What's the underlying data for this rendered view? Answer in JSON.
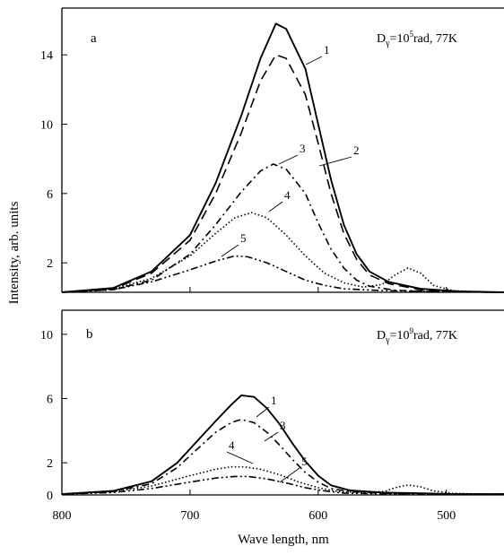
{
  "chart_data": [
    {
      "type": "line",
      "panel_label": "a",
      "condition": {
        "prefix": "D",
        "sub": "γ",
        "mid": "=10",
        "sup": "5",
        "suffix": "rad, 77K"
      },
      "xlabel": "Wave length, nm",
      "ylabel": "Intensity, arb. units",
      "xlim": [
        800,
        455
      ],
      "ylim": [
        0.3,
        16.7
      ],
      "x_reversed": true,
      "xticks": [
        800,
        700,
        600,
        500
      ],
      "yticks": [
        2,
        6,
        10,
        14
      ],
      "series": [
        {
          "name": "1",
          "style": "solid",
          "points": [
            [
              800,
              0.3
            ],
            [
              760,
              0.55
            ],
            [
              730,
              1.5
            ],
            [
              700,
              3.6
            ],
            [
              680,
              6.6
            ],
            [
              660,
              10.5
            ],
            [
              645,
              13.8
            ],
            [
              633,
              15.8
            ],
            [
              625,
              15.5
            ],
            [
              610,
              13.2
            ],
            [
              600,
              10.0
            ],
            [
              590,
              6.8
            ],
            [
              580,
              4.2
            ],
            [
              570,
              2.5
            ],
            [
              560,
              1.5
            ],
            [
              545,
              0.9
            ],
            [
              520,
              0.5
            ],
            [
              490,
              0.35
            ],
            [
              455,
              0.3
            ]
          ]
        },
        {
          "name": "2",
          "style": "dashed",
          "points": [
            [
              800,
              0.3
            ],
            [
              760,
              0.5
            ],
            [
              730,
              1.4
            ],
            [
              700,
              3.3
            ],
            [
              680,
              6.0
            ],
            [
              660,
              9.5
            ],
            [
              645,
              12.5
            ],
            [
              633,
              14.0
            ],
            [
              625,
              13.8
            ],
            [
              610,
              11.7
            ],
            [
              600,
              8.9
            ],
            [
              590,
              6.0
            ],
            [
              580,
              3.7
            ],
            [
              570,
              2.2
            ],
            [
              560,
              1.3
            ],
            [
              545,
              0.8
            ],
            [
              520,
              0.45
            ],
            [
              490,
              0.33
            ],
            [
              455,
              0.3
            ]
          ]
        },
        {
          "name": "3",
          "style": "dashdot",
          "points": [
            [
              800,
              0.3
            ],
            [
              760,
              0.45
            ],
            [
              730,
              1.0
            ],
            [
              700,
              2.5
            ],
            [
              680,
              4.2
            ],
            [
              660,
              6.1
            ],
            [
              645,
              7.3
            ],
            [
              635,
              7.7
            ],
            [
              625,
              7.4
            ],
            [
              610,
              6.0
            ],
            [
              600,
              4.3
            ],
            [
              590,
              2.8
            ],
            [
              580,
              1.7
            ],
            [
              570,
              1.0
            ],
            [
              560,
              0.65
            ],
            [
              540,
              0.42
            ],
            [
              500,
              0.32
            ],
            [
              455,
              0.3
            ]
          ]
        },
        {
          "name": "4",
          "style": "dotted",
          "points": [
            [
              800,
              0.3
            ],
            [
              760,
              0.5
            ],
            [
              730,
              1.1
            ],
            [
              700,
              2.4
            ],
            [
              680,
              3.7
            ],
            [
              665,
              4.6
            ],
            [
              652,
              4.9
            ],
            [
              640,
              4.6
            ],
            [
              625,
              3.6
            ],
            [
              610,
              2.4
            ],
            [
              595,
              1.4
            ],
            [
              580,
              0.85
            ],
            [
              565,
              0.6
            ],
            [
              550,
              0.75
            ],
            [
              540,
              1.3
            ],
            [
              530,
              1.7
            ],
            [
              520,
              1.4
            ],
            [
              510,
              0.7
            ],
            [
              495,
              0.4
            ],
            [
              470,
              0.3
            ],
            [
              455,
              0.3
            ]
          ]
        },
        {
          "name": "5",
          "style": "dashdotdot",
          "points": [
            [
              800,
              0.3
            ],
            [
              760,
              0.45
            ],
            [
              730,
              0.9
            ],
            [
              700,
              1.6
            ],
            [
              680,
              2.1
            ],
            [
              665,
              2.4
            ],
            [
              655,
              2.35
            ],
            [
              640,
              2.0
            ],
            [
              625,
              1.5
            ],
            [
              610,
              1.0
            ],
            [
              595,
              0.7
            ],
            [
              580,
              0.5
            ],
            [
              550,
              0.4
            ],
            [
              500,
              0.33
            ],
            [
              455,
              0.3
            ]
          ]
        }
      ],
      "curve_labels": [
        {
          "series": "1",
          "text": "1"
        },
        {
          "series": "2",
          "text": "2"
        },
        {
          "series": "3",
          "text": "3"
        },
        {
          "series": "4",
          "text": "4"
        },
        {
          "series": "5",
          "text": "5"
        }
      ]
    },
    {
      "type": "line",
      "panel_label": "b",
      "condition": {
        "prefix": "D",
        "sub": "γ",
        "mid": "=10",
        "sup": "9",
        "suffix": "rad, 77K"
      },
      "xlabel": "Wave length, nm",
      "ylabel": "Intensity, arb. units",
      "xlim": [
        800,
        455
      ],
      "ylim": [
        0,
        11.5
      ],
      "x_reversed": true,
      "xticks": [
        800,
        700,
        600,
        500
      ],
      "yticks": [
        0,
        2,
        6,
        10
      ],
      "series": [
        {
          "name": "1",
          "style": "solid",
          "points": [
            [
              800,
              0.05
            ],
            [
              760,
              0.25
            ],
            [
              730,
              0.85
            ],
            [
              710,
              2.0
            ],
            [
              695,
              3.3
            ],
            [
              680,
              4.6
            ],
            [
              668,
              5.6
            ],
            [
              660,
              6.2
            ],
            [
              650,
              6.1
            ],
            [
              640,
              5.4
            ],
            [
              630,
              4.4
            ],
            [
              620,
              3.2
            ],
            [
              610,
              2.1
            ],
            [
              600,
              1.2
            ],
            [
              590,
              0.6
            ],
            [
              575,
              0.28
            ],
            [
              550,
              0.15
            ],
            [
              520,
              0.1
            ],
            [
              490,
              0.05
            ],
            [
              455,
              0.05
            ]
          ]
        },
        {
          "name": "3",
          "style": "dashdot",
          "points": [
            [
              800,
              0.05
            ],
            [
              760,
              0.22
            ],
            [
              730,
              0.7
            ],
            [
              710,
              1.7
            ],
            [
              695,
              2.8
            ],
            [
              680,
              3.9
            ],
            [
              668,
              4.5
            ],
            [
              660,
              4.7
            ],
            [
              650,
              4.5
            ],
            [
              640,
              3.9
            ],
            [
              630,
              3.1
            ],
            [
              620,
              2.2
            ],
            [
              610,
              1.4
            ],
            [
              600,
              0.8
            ],
            [
              590,
              0.4
            ],
            [
              575,
              0.2
            ],
            [
              550,
              0.1
            ],
            [
              500,
              0.05
            ],
            [
              455,
              0.05
            ]
          ]
        },
        {
          "name": "4",
          "style": "dotted",
          "points": [
            [
              800,
              0.05
            ],
            [
              760,
              0.2
            ],
            [
              730,
              0.55
            ],
            [
              700,
              1.2
            ],
            [
              680,
              1.6
            ],
            [
              668,
              1.75
            ],
            [
              658,
              1.75
            ],
            [
              645,
              1.6
            ],
            [
              630,
              1.25
            ],
            [
              615,
              0.8
            ],
            [
              600,
              0.45
            ],
            [
              585,
              0.22
            ],
            [
              565,
              0.15
            ],
            [
              548,
              0.22
            ],
            [
              540,
              0.45
            ],
            [
              530,
              0.62
            ],
            [
              520,
              0.5
            ],
            [
              510,
              0.25
            ],
            [
              495,
              0.1
            ],
            [
              470,
              0.05
            ],
            [
              455,
              0.05
            ]
          ]
        },
        {
          "name": "5",
          "style": "dashdotdot",
          "points": [
            [
              800,
              0.05
            ],
            [
              760,
              0.15
            ],
            [
              730,
              0.4
            ],
            [
              700,
              0.8
            ],
            [
              680,
              1.05
            ],
            [
              665,
              1.15
            ],
            [
              655,
              1.15
            ],
            [
              640,
              1.0
            ],
            [
              625,
              0.75
            ],
            [
              610,
              0.45
            ],
            [
              595,
              0.25
            ],
            [
              580,
              0.12
            ],
            [
              550,
              0.07
            ],
            [
              500,
              0.05
            ],
            [
              455,
              0.05
            ]
          ]
        }
      ],
      "curve_labels": [
        {
          "series": "1",
          "text": "1"
        },
        {
          "series": "3",
          "text": "3"
        },
        {
          "series": "4",
          "text": "4"
        },
        {
          "series": "5",
          "text": "5"
        }
      ]
    }
  ]
}
